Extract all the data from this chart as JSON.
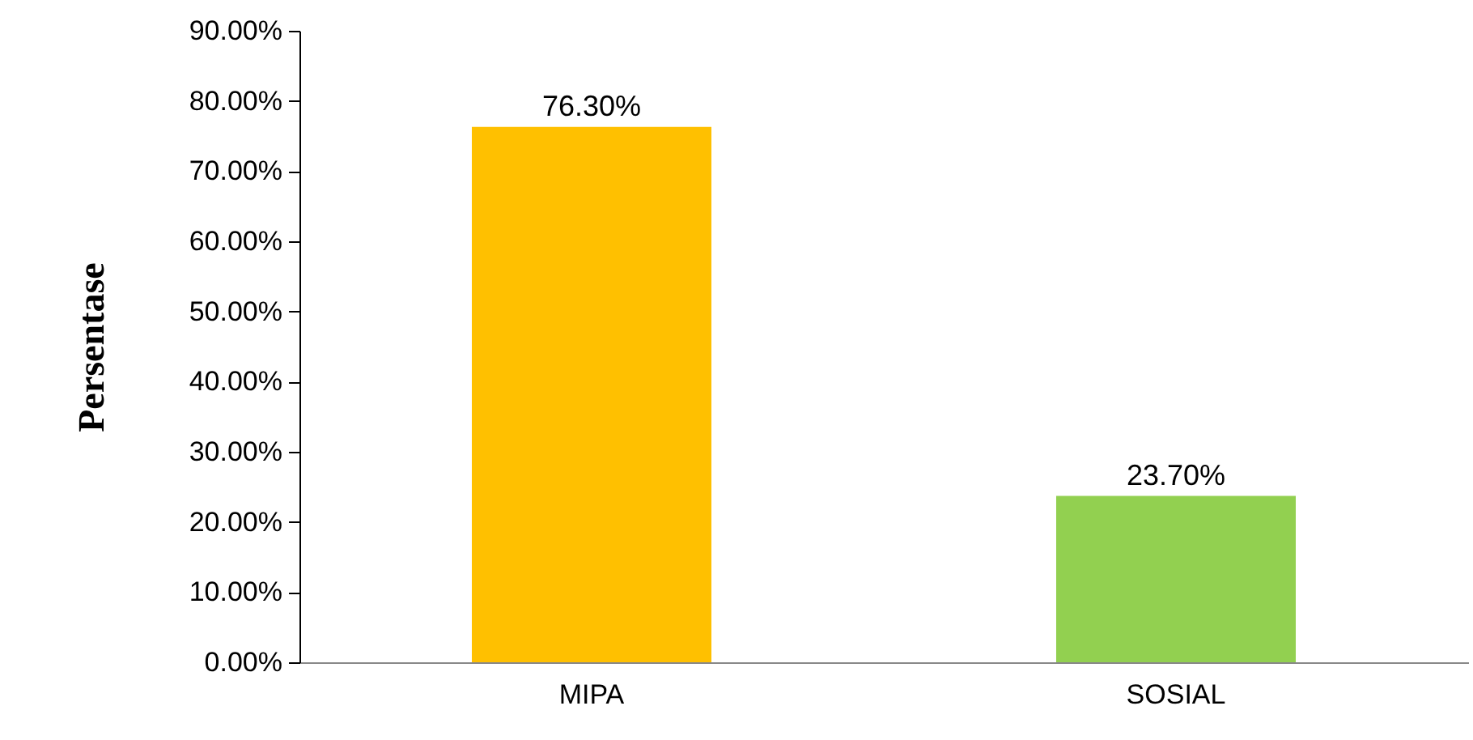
{
  "chart_data": {
    "type": "bar",
    "ylabel": "Persentase",
    "categories": [
      "MIPA",
      "SOSIAL"
    ],
    "values": [
      76.3,
      23.7
    ],
    "colors": [
      "#ffc000",
      "#92d050"
    ],
    "value_labels": [
      "76.30%",
      "23.70%"
    ],
    "ylim": [
      0,
      90
    ],
    "yticks": [
      {
        "value": 0,
        "label": "0.00%"
      },
      {
        "value": 10,
        "label": "10.00%"
      },
      {
        "value": 20,
        "label": "20.00%"
      },
      {
        "value": 30,
        "label": "30.00%"
      },
      {
        "value": 40,
        "label": "40.00%"
      },
      {
        "value": 50,
        "label": "50.00%"
      },
      {
        "value": 60,
        "label": "60.00%"
      },
      {
        "value": 70,
        "label": "70.00%"
      },
      {
        "value": 80,
        "label": "80.00%"
      },
      {
        "value": 90,
        "label": "90.00%"
      }
    ]
  }
}
